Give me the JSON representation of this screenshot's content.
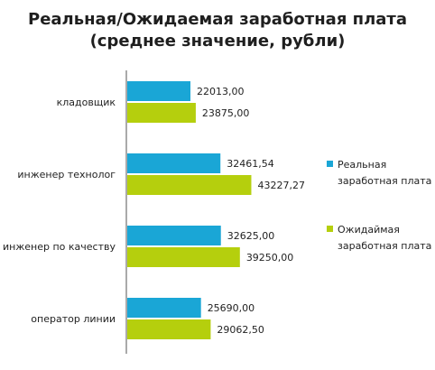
{
  "chart_data": {
    "type": "bar",
    "orientation": "horizontal",
    "title": [
      "Реальная/Ожидаемая заработная плата",
      "(среднее значение, рубли)"
    ],
    "categories": [
      "кладовщик",
      "инженер технолог",
      "инженер по качеству",
      "оператор линии"
    ],
    "series": [
      {
        "name": [
          "Реальная",
          "заработная плата"
        ],
        "color": "#1aa6d6",
        "values": [
          22013.0,
          32461.54,
          32625.0,
          25690.0
        ],
        "labels": [
          "22013,00",
          "32461,54",
          "32625,00",
          "25690,00"
        ]
      },
      {
        "name": [
          "Ожидаймая",
          "заработная плата"
        ],
        "color": "#b5cf0d",
        "values": [
          23875.0,
          43227.27,
          39250.0,
          29062.5
        ],
        "labels": [
          "23875,00",
          "43227,27",
          "39250,00",
          "29062,50"
        ]
      }
    ],
    "xlim": [
      0,
      75000
    ],
    "legend": "right",
    "grid": false
  }
}
